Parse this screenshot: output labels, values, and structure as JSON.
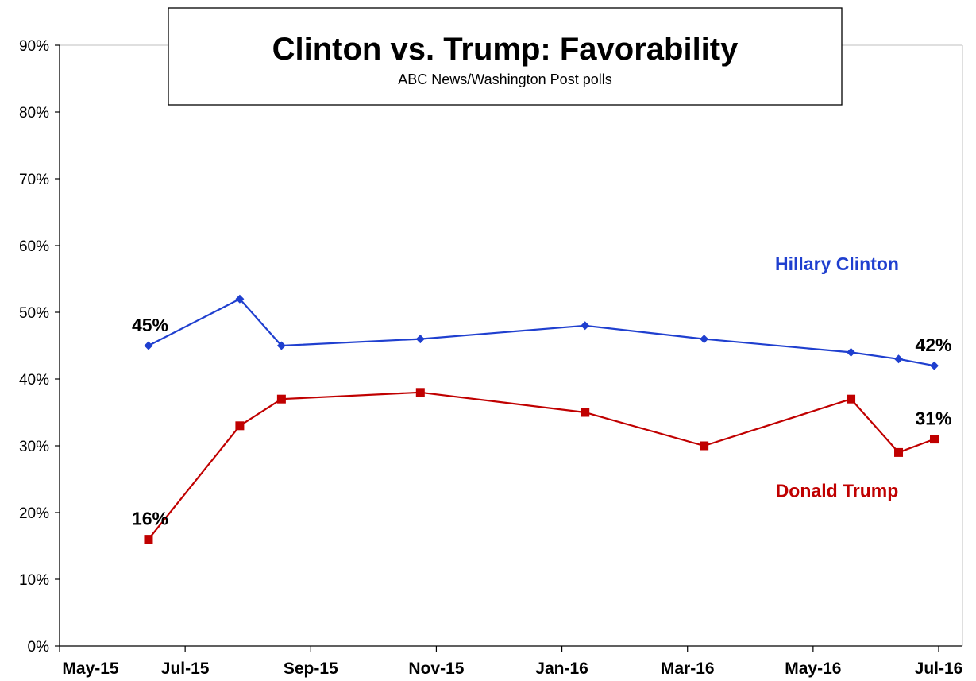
{
  "chart_data": {
    "type": "line",
    "title": "Clinton vs. Trump: Favorability",
    "subtitle": "ABC News/Washington  Post polls",
    "x_ticks": [
      "May-15",
      "Jul-15",
      "Sep-15",
      "Nov-15",
      "Jan-16",
      "Mar-16",
      "May-16",
      "Jul-16"
    ],
    "y_ticks": [
      "0%",
      "10%",
      "20%",
      "30%",
      "40%",
      "50%",
      "60%",
      "70%",
      "80%",
      "90%"
    ],
    "ylim": [
      0,
      90
    ],
    "y_unit": "%",
    "x_range": [
      "2015-05-01",
      "2016-07-01"
    ],
    "grid": false,
    "series": [
      {
        "name": "Hillary Clinton",
        "color": "#1f3fcf",
        "marker": "diamond",
        "points": [
          {
            "date": "2015-05-31",
            "value": 45
          },
          {
            "date": "2015-07-16",
            "value": 52
          },
          {
            "date": "2015-08-06",
            "value": 45
          },
          {
            "date": "2015-10-15",
            "value": 46
          },
          {
            "date": "2016-01-06",
            "value": 48
          },
          {
            "date": "2016-03-06",
            "value": 46
          },
          {
            "date": "2016-05-19",
            "value": 44
          },
          {
            "date": "2016-06-12",
            "value": 43
          },
          {
            "date": "2016-06-30",
            "value": 42
          }
        ]
      },
      {
        "name": "Donald Trump",
        "color": "#c00000",
        "marker": "square",
        "points": [
          {
            "date": "2015-05-31",
            "value": 16
          },
          {
            "date": "2015-07-16",
            "value": 33
          },
          {
            "date": "2015-08-06",
            "value": 37
          },
          {
            "date": "2015-10-15",
            "value": 38
          },
          {
            "date": "2016-01-06",
            "value": 35
          },
          {
            "date": "2016-03-06",
            "value": 30
          },
          {
            "date": "2016-05-19",
            "value": 37
          },
          {
            "date": "2016-06-12",
            "value": 29
          },
          {
            "date": "2016-06-30",
            "value": 31
          }
        ]
      }
    ],
    "annotations": [
      {
        "text": "45%",
        "series": "Hillary Clinton",
        "date": "2015-05-31",
        "value": 45
      },
      {
        "text": "42%",
        "series": "Hillary Clinton",
        "date": "2016-06-30",
        "value": 42
      },
      {
        "text": "16%",
        "series": "Donald Trump",
        "date": "2015-05-31",
        "value": 16
      },
      {
        "text": "31%",
        "series": "Donald Trump",
        "date": "2016-06-30",
        "value": 31
      }
    ]
  }
}
